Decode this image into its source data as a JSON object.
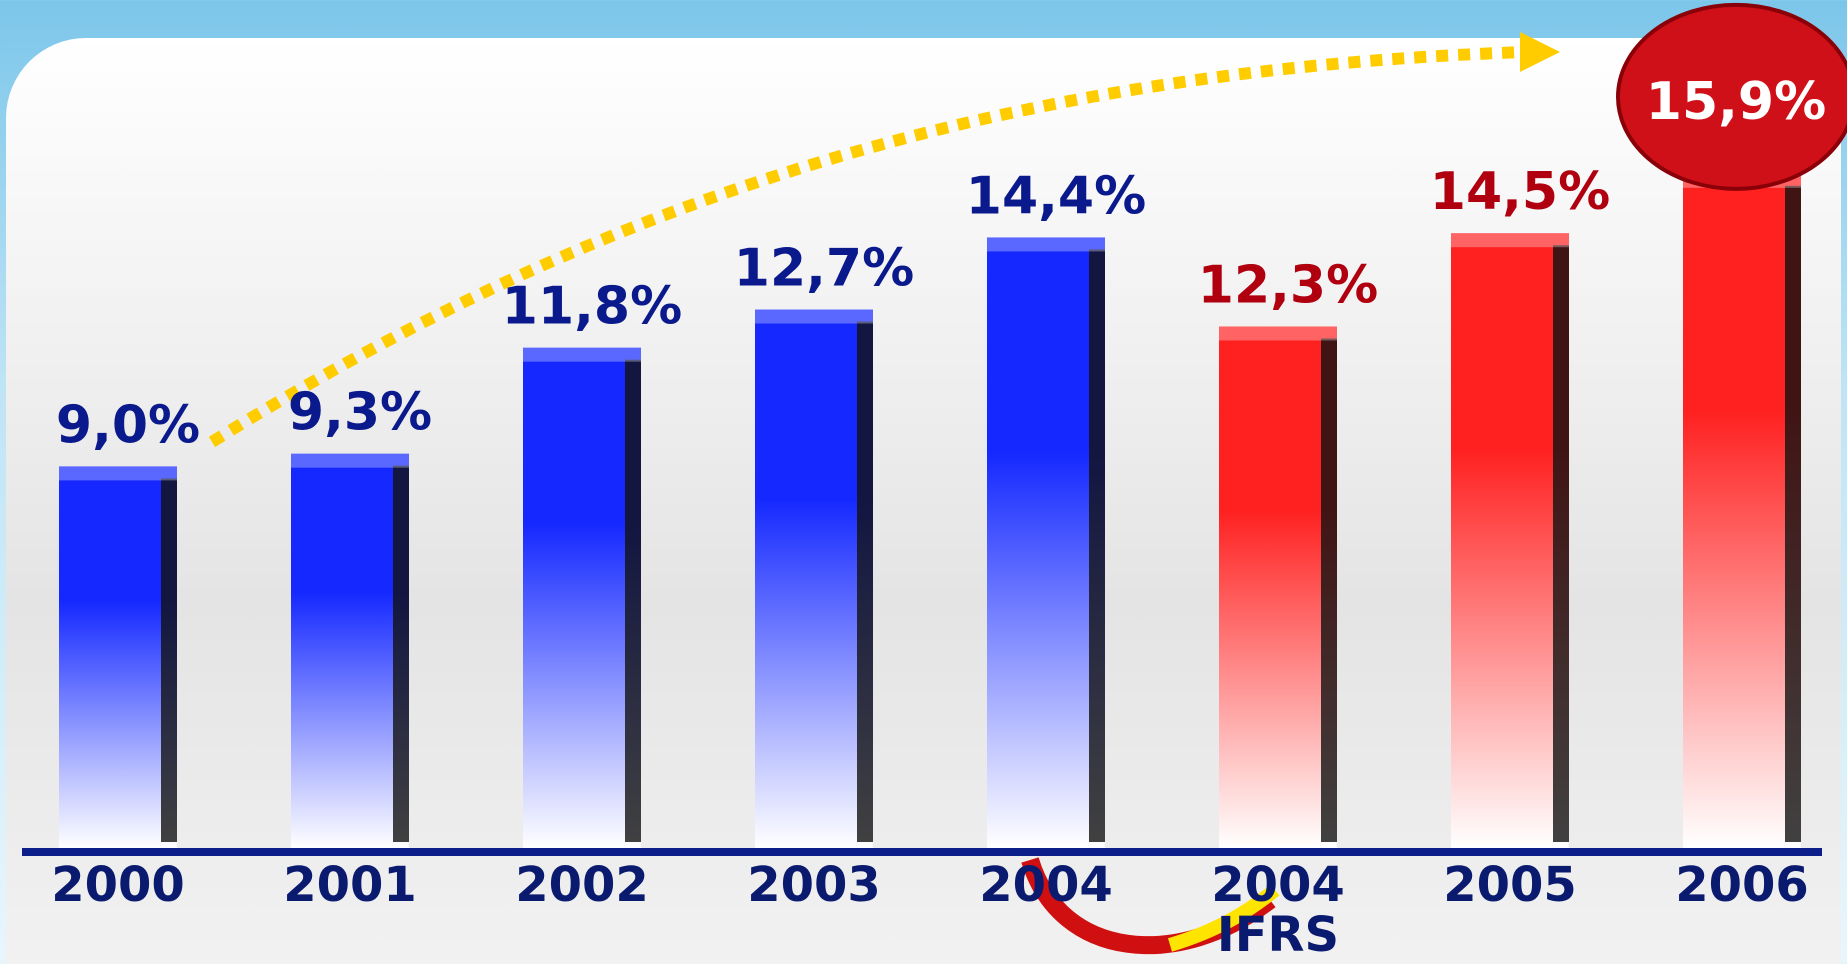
{
  "chart_data": {
    "type": "bar",
    "categories": [
      "2000",
      "2001",
      "2002",
      "2003",
      "2004",
      "2004 IFRS",
      "2005",
      "2006"
    ],
    "values": [
      9.0,
      9.3,
      11.8,
      12.7,
      14.4,
      12.3,
      14.5,
      15.9
    ],
    "value_labels": [
      "9,0%",
      "9,3%",
      "11,8%",
      "12,7%",
      "14,4%",
      "12,3%",
      "14,5%",
      "15,9%"
    ],
    "colors": [
      "#1428ff",
      "#1428ff",
      "#1428ff",
      "#1428ff",
      "#1428ff",
      "#ff2020",
      "#ff2020",
      "#ff2020"
    ],
    "label_colors": [
      "#0a1a8c",
      "#0a1a8c",
      "#0a1a8c",
      "#0a1a8c",
      "#0a1a8c",
      "#b00010",
      "#b00010",
      "#b00010"
    ],
    "ylim": [
      0,
      20
    ]
  }
}
